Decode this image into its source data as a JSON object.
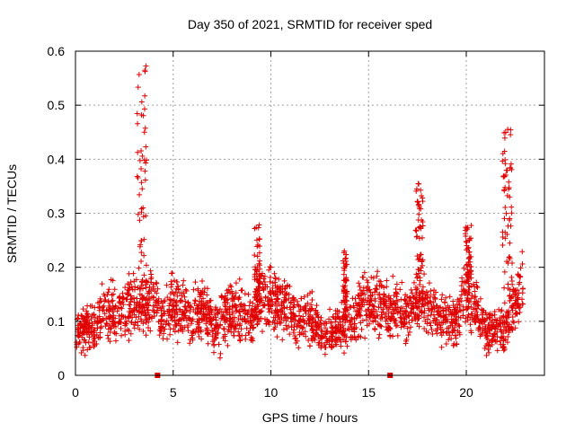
{
  "chart_data": {
    "type": "scatter",
    "title": "Day 350 of 2021, SRMTID for receiver sped",
    "xlabel": "GPS time / hours",
    "ylabel": "SRMTID / TECUs",
    "xlim": [
      0,
      24
    ],
    "ylim": [
      0,
      0.6
    ],
    "x_ticks": [
      0,
      5,
      10,
      15,
      20
    ],
    "x_tick_labels": [
      "0",
      "5",
      "10",
      "15",
      "20"
    ],
    "y_ticks": [
      0,
      0.1,
      0.2,
      0.3,
      0.4,
      0.5,
      0.6
    ],
    "y_tick_labels": [
      "0",
      "0.1",
      "0.2",
      "0.3",
      "0.4",
      "0.5",
      "0.6"
    ],
    "grid": true,
    "marker": "plus",
    "color": "#e00000",
    "baseline_markers_x": [
      4.2,
      16.1
    ],
    "baseline_profile": {
      "x": [
        0,
        0.5,
        1,
        1.5,
        2,
        2.5,
        3,
        3.5,
        4,
        4.5,
        5,
        5.5,
        6,
        6.5,
        7,
        7.5,
        8,
        8.5,
        9,
        9.5,
        10,
        10.5,
        11,
        11.5,
        12,
        12.5,
        13,
        13.5,
        14,
        14.5,
        15,
        15.5,
        16,
        16.5,
        17,
        17.5,
        18,
        18.5,
        19,
        19.5,
        20,
        20.5,
        21,
        21.5,
        22,
        22.5,
        23
      ],
      "y": [
        0.08,
        0.085,
        0.09,
        0.13,
        0.11,
        0.12,
        0.14,
        0.13,
        0.14,
        0.11,
        0.13,
        0.12,
        0.1,
        0.13,
        0.09,
        0.1,
        0.12,
        0.11,
        0.1,
        0.15,
        0.14,
        0.13,
        0.12,
        0.1,
        0.11,
        0.08,
        0.08,
        0.09,
        0.1,
        0.12,
        0.13,
        0.14,
        0.12,
        0.13,
        0.11,
        0.14,
        0.12,
        0.11,
        0.1,
        0.1,
        0.17,
        0.13,
        0.08,
        0.09,
        0.08,
        0.14,
        0.17
      ]
    },
    "features": [
      {
        "x": 3.4,
        "y": 0.4,
        "width": 0.5,
        "max": 0.58
      },
      {
        "x": 9.3,
        "y": 0.27,
        "width": 0.3,
        "max": 0.28
      },
      {
        "x": 13.8,
        "y": 0.22,
        "width": 0.2,
        "max": 0.23
      },
      {
        "x": 17.6,
        "y": 0.3,
        "width": 0.4,
        "max": 0.37
      },
      {
        "x": 20.1,
        "y": 0.26,
        "width": 0.3,
        "max": 0.28
      },
      {
        "x": 22.1,
        "y": 0.37,
        "width": 0.5,
        "max": 0.46
      }
    ]
  }
}
